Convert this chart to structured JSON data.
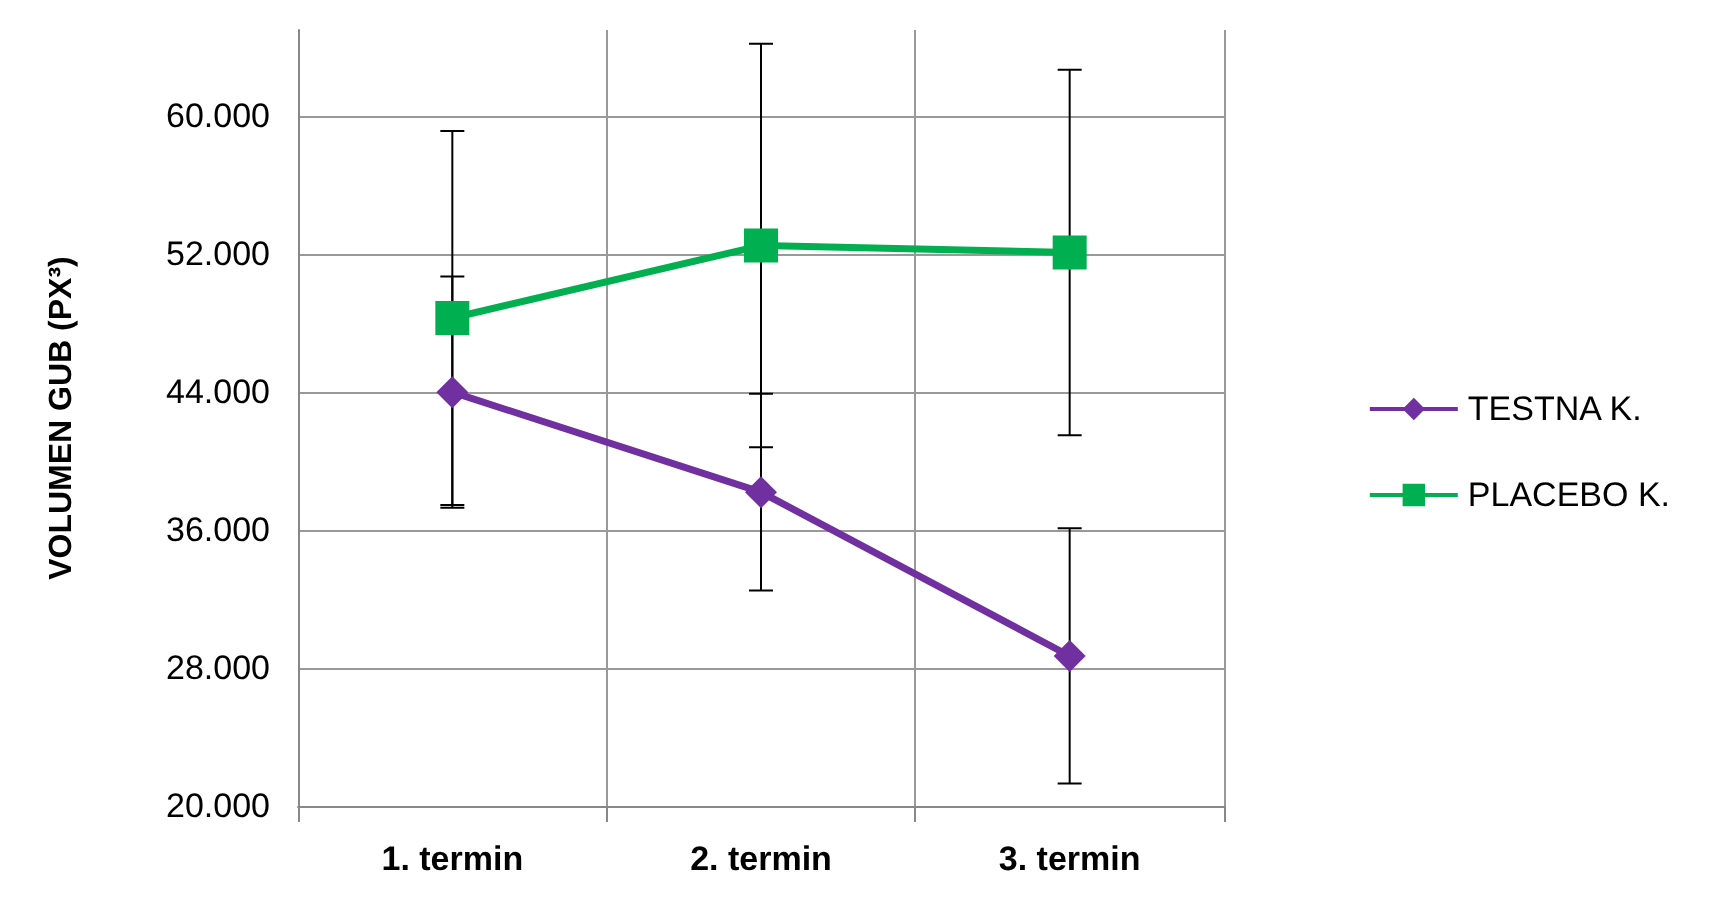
{
  "chart_data": {
    "type": "line",
    "ylabel": "VOLUMEN GUB (PX³)",
    "categories": [
      "1. termin",
      "2. termin",
      "3. termin"
    ],
    "series": [
      {
        "name": "TESTNA K.",
        "color": "#7030a0",
        "marker": "diamond",
        "values": [
          44000,
          38200,
          28700
        ],
        "errors": [
          6700,
          5700,
          7400
        ]
      },
      {
        "name": "PLACEBO K.",
        "color": "#00b050",
        "marker": "square",
        "values": [
          48300,
          52500,
          52100
        ],
        "errors": [
          10850,
          11700,
          10600
        ]
      }
    ],
    "ylim": [
      20000,
      65000
    ],
    "yticks": [
      {
        "value": 20000,
        "label": "20.000"
      },
      {
        "value": 28000,
        "label": "28.000"
      },
      {
        "value": 36000,
        "label": "36.000"
      },
      {
        "value": 44000,
        "label": "44.000"
      },
      {
        "value": 52000,
        "label": "52.000"
      },
      {
        "value": 60000,
        "label": "60.000"
      }
    ],
    "grid": true,
    "legend": "right"
  }
}
